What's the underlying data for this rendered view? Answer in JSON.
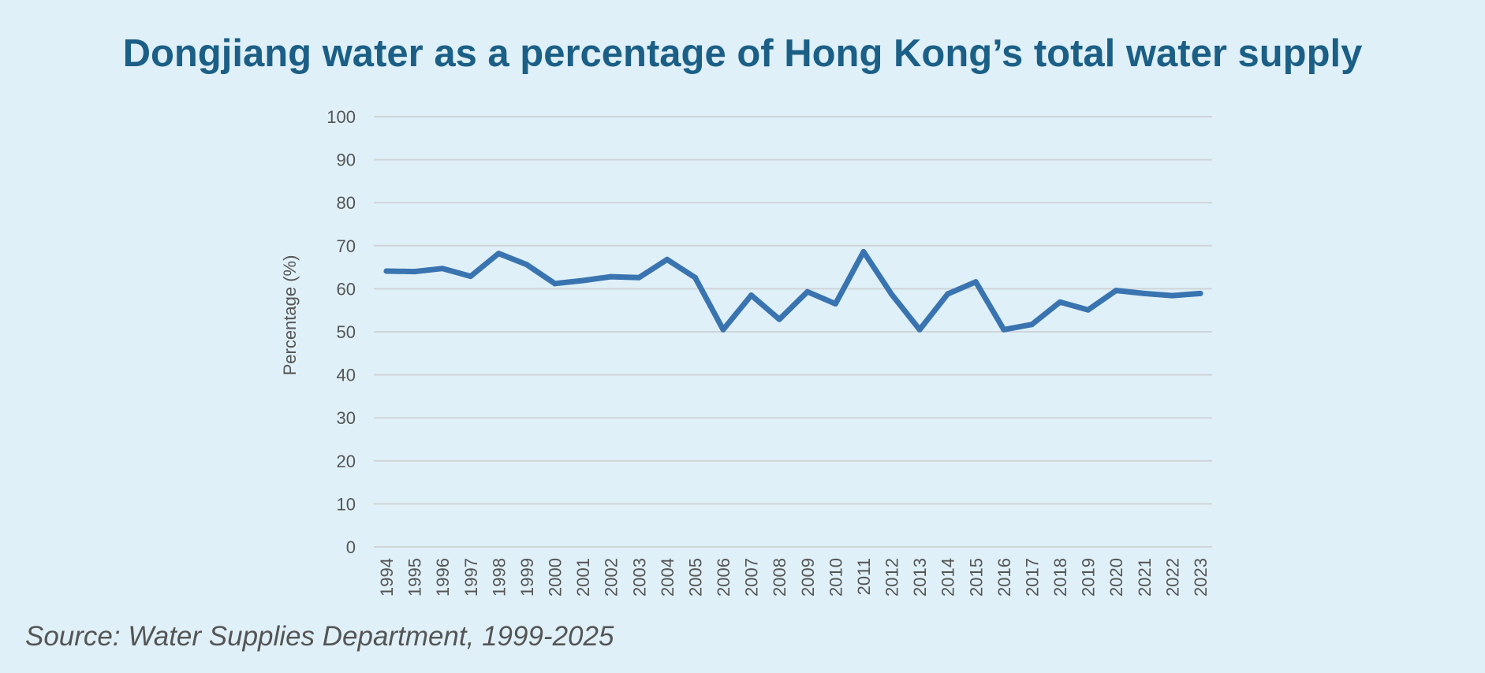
{
  "title": "Dongjiang water as a percentage of Hong Kong’s total water supply",
  "source": "Source: Water Supplies Department, 1999-2025",
  "colors": {
    "background": "#dff0f8",
    "title": "#1b5f86",
    "line": "#3a74b0",
    "grid": "#d0d4d8",
    "text": "#555555"
  },
  "chart_data": {
    "type": "line",
    "title": "Dongjiang water as a percentage of Hong Kong’s total water supply",
    "xlabel": "",
    "ylabel": "Percentage (%)",
    "ylim": [
      0,
      100
    ],
    "yticks": [
      "0",
      "10",
      "20",
      "30",
      "40",
      "50",
      "60",
      "70",
      "80",
      "90",
      "100"
    ],
    "grid": true,
    "legend": "none",
    "categories": [
      "1994",
      "1995",
      "1996",
      "1997",
      "1998",
      "1999",
      "2000",
      "2001",
      "2002",
      "2003",
      "2004",
      "2005",
      "2006",
      "2007",
      "2008",
      "2009",
      "2010",
      "2011",
      "2012",
      "2013",
      "2014",
      "2015",
      "2016",
      "2017",
      "2018",
      "2019",
      "2020",
      "2021",
      "2022",
      "2023"
    ],
    "series": [
      {
        "color": "#3a74b0",
        "values": [
          64.1,
          64.0,
          64.7,
          62.9,
          68.2,
          65.6,
          61.2,
          61.9,
          62.8,
          62.6,
          66.8,
          62.6,
          50.5,
          58.5,
          52.9,
          59.3,
          56.5,
          68.6,
          58.7,
          50.5,
          58.8,
          61.6,
          50.5,
          51.7,
          56.9,
          55.1,
          59.6,
          58.9,
          58.4,
          58.9
        ]
      }
    ]
  }
}
